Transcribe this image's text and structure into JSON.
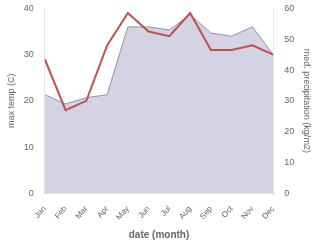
{
  "chart_data": {
    "type": "line",
    "xlabel": "date (month)",
    "ylabel": "max temp (C)",
    "y2label": "med. precipitation (kg/m2)",
    "categories": [
      "Jan",
      "Feb",
      "Mar",
      "Apr",
      "May",
      "Jun",
      "Jul",
      "Aug",
      "Sep",
      "Oct",
      "Nov",
      "Dec"
    ],
    "series": [
      {
        "type": "area",
        "color": "#9090bb",
        "axis": "y2",
        "values": [
          32,
          29,
          31,
          32,
          54,
          54,
          53,
          58,
          52,
          51,
          54,
          45
        ]
      },
      {
        "type": "line",
        "color": "#c0504d",
        "values": [
          29,
          18,
          20,
          32,
          39,
          35,
          34,
          39,
          31,
          31,
          32,
          30
        ]
      }
    ],
    "ylim": [
      0,
      40
    ],
    "yticks": [
      0,
      10,
      20,
      30,
      40
    ],
    "y2lim": [
      0,
      60
    ],
    "y2ticks": [
      0,
      10,
      20,
      30,
      40,
      50,
      60
    ],
    "grid": false
  }
}
